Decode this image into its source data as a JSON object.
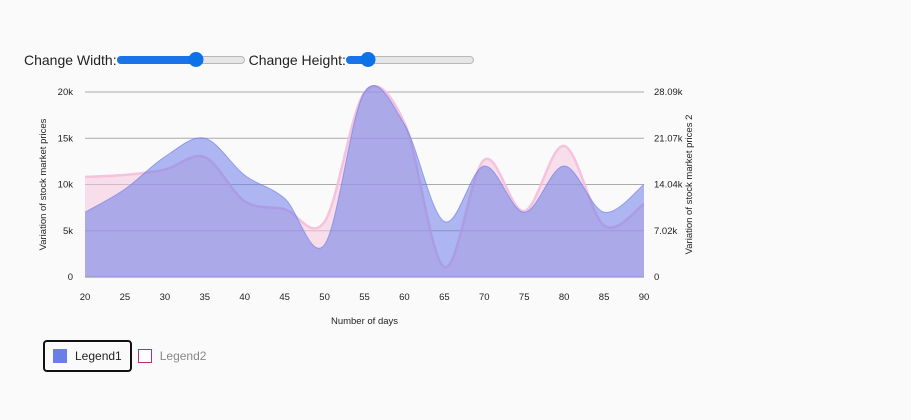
{
  "controls": {
    "width_label": "Change Width:",
    "height_label": "Change Height:",
    "width_value": 0.62,
    "height_value": 0.17
  },
  "legend": {
    "items": [
      {
        "label": "Legend1",
        "color": "#6b7ee8"
      },
      {
        "label": "Legend2",
        "color": "#b0307a"
      }
    ]
  },
  "chart_data": {
    "type": "area",
    "xlabel": "Number of days",
    "ylabel_left": "Variation of stock market prices",
    "ylabel_right": "Variation of stock market prices 2",
    "x": [
      20,
      25,
      30,
      35,
      40,
      45,
      50,
      55,
      60,
      65,
      70,
      75,
      80,
      85,
      90
    ],
    "x_ticks": [
      "20",
      "25",
      "30",
      "35",
      "40",
      "45",
      "50",
      "55",
      "60",
      "65",
      "70",
      "75",
      "80",
      "85",
      "90"
    ],
    "ylim_left": [
      0,
      20000
    ],
    "y_ticks_left": [
      "0",
      "5k",
      "10k",
      "15k",
      "20k"
    ],
    "ylim_right": [
      0,
      28090
    ],
    "y_ticks_right": [
      "0",
      "7.02k",
      "14.04k",
      "21.07k",
      "28.09k"
    ],
    "series": [
      {
        "name": "Legend1",
        "axis": "left",
        "color": "#7b8ee8",
        "values": [
          7000,
          9500,
          13000,
          15000,
          11000,
          8500,
          3500,
          20000,
          16500,
          6000,
          12000,
          7000,
          12000,
          7000,
          10000
        ]
      },
      {
        "name": "Legend2",
        "axis": "right",
        "color": "#f4c2dc",
        "values": [
          15200,
          15500,
          16300,
          18200,
          11500,
          10300,
          8400,
          28000,
          23400,
          1500,
          17800,
          10000,
          19900,
          7800,
          11100
        ]
      }
    ]
  }
}
